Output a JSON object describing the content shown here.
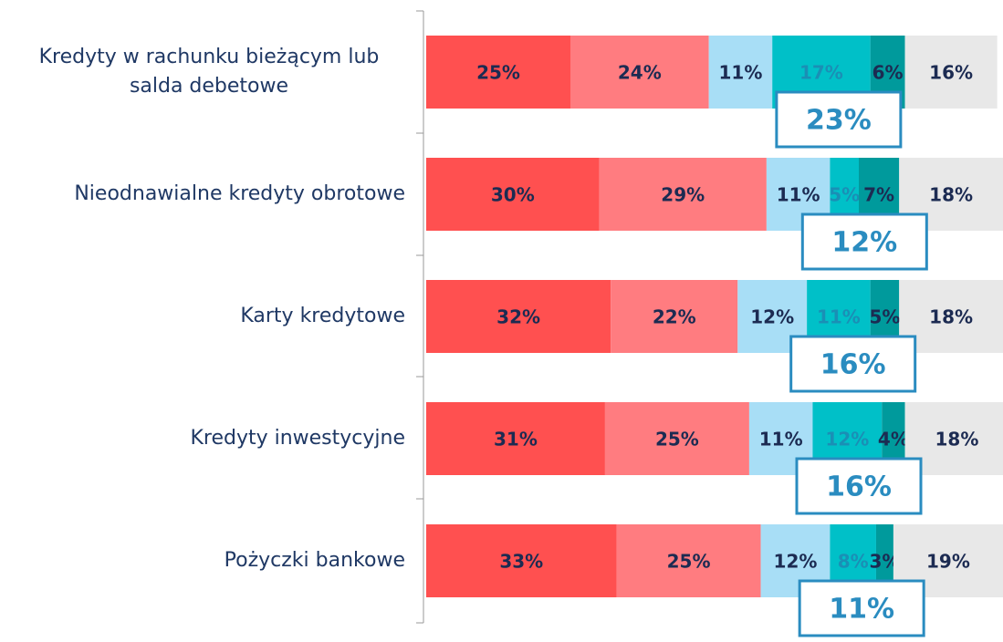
{
  "chart_data": {
    "type": "stacked_bar_horizontal",
    "categories": [
      "Kredyty w rachunku bieżącym lub salda debetowe",
      "Nieodnawialne kredyty obrotowe",
      "Karty kredytowe",
      "Kredyty inwestycyjne",
      "Pożyczki bankowe"
    ],
    "xlim": [
      0,
      100
    ],
    "series": [
      {
        "color": "#ff5050",
        "label_color": "#1c2b52",
        "values": [
          25,
          30,
          32,
          31,
          33
        ],
        "value_labels": [
          "25%",
          "30%",
          "32%",
          "31%",
          "33%"
        ]
      },
      {
        "color": "#ff7c80",
        "label_color": "#1c2b52",
        "values": [
          24,
          29,
          22,
          25,
          25
        ],
        "value_labels": [
          "24%",
          "29%",
          "22%",
          "25%",
          "25%"
        ]
      },
      {
        "color": "#a8def6",
        "label_color": "#1c2b52",
        "values": [
          11,
          11,
          12,
          11,
          12
        ],
        "value_labels": [
          "11%",
          "11%",
          "12%",
          "11%",
          "12%"
        ]
      },
      {
        "color": "#00c0c8",
        "label_color": "#1a8fb5",
        "values": [
          17,
          5,
          11,
          12,
          8
        ],
        "value_labels": [
          "17%",
          "5%",
          "11%",
          "12%",
          "8%"
        ]
      },
      {
        "color": "#009a9c",
        "label_color": "#1c2b52",
        "values": [
          6,
          7,
          5,
          4,
          3
        ],
        "value_labels": [
          "6%",
          "7%",
          "5%",
          "4%",
          "3%"
        ]
      },
      {
        "color": "#e8e8e8",
        "label_color": "#1c2b52",
        "values": [
          16,
          18,
          18,
          18,
          19
        ],
        "value_labels": [
          "16%",
          "18%",
          "18%",
          "18%",
          "19%"
        ]
      }
    ],
    "box_color": "#2a8cc0",
    "box_values": [
      23,
      12,
      16,
      16,
      11
    ],
    "box_labels": [
      "23%",
      "12%",
      "16%",
      "16%",
      "11%"
    ]
  }
}
